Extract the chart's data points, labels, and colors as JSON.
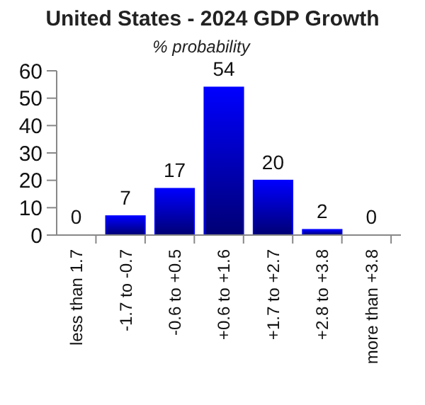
{
  "chart_data": {
    "type": "bar",
    "title": "United States - 2024 GDP Growth",
    "subtitle": "% probability",
    "categories": [
      "less than 1.7",
      "-1.7 to -0.7",
      "-0.6 to +0.5",
      "+0.6 to +1.6",
      "+1.7 to +2.7",
      "+2.8 to +3.8",
      "more than +3.8"
    ],
    "values": [
      0,
      7,
      17,
      54,
      20,
      2,
      0
    ],
    "color": "#0000ff",
    "ylim": [
      0,
      60
    ],
    "yticks": [
      0,
      10,
      20,
      30,
      40,
      50,
      60
    ],
    "data_labels": true,
    "grid": false
  }
}
